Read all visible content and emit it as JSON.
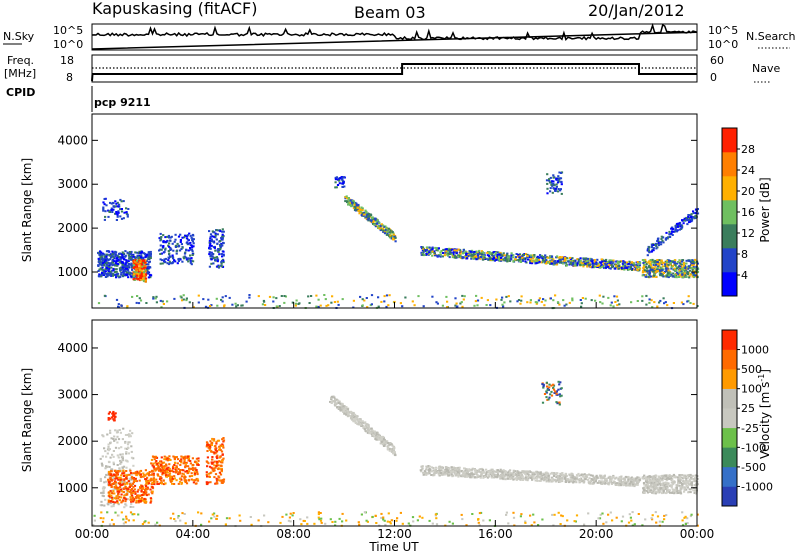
{
  "header": {
    "station": "Kapuskasing (fitACF)",
    "beam": "Beam 03",
    "date": "20/Jan/2012"
  },
  "side_labels": {
    "nsky": "N.Sky",
    "freq": "Freq.",
    "freq_unit": "[MHz]",
    "cpid": "CPID",
    "nsearch": "N.Search",
    "nave": "Nave"
  },
  "nsky_ticks": {
    "top": "10^5",
    "bottom": "10^0"
  },
  "nsearch_ticks": {
    "top": "10^5",
    "bottom": "10^0"
  },
  "freq_ticks": {
    "top": "18",
    "bottom": "8"
  },
  "nave_ticks": {
    "top": "60",
    "bottom": "0"
  },
  "cpid_text": "pcp 9211",
  "chart_data": [
    {
      "type": "heatmap",
      "name": "power",
      "ylabel": "Slant Range [km]",
      "ylim": [
        180,
        4600
      ],
      "yticks": [
        1000,
        2000,
        3000,
        4000
      ],
      "colorbar": {
        "label": "Power [dB]",
        "ticks": [
          "28",
          "24",
          "20",
          "16",
          "12",
          "8",
          "4"
        ],
        "colors": [
          "#0000ff",
          "#2244c8",
          "#3a7d5c",
          "#6fbf60",
          "#ffb000",
          "#ff7f00",
          "#ff2000"
        ]
      }
    },
    {
      "type": "heatmap",
      "name": "velocity",
      "ylabel": "Slant Range [km]",
      "ylim": [
        180,
        4600
      ],
      "yticks": [
        1000,
        2000,
        3000,
        4000
      ],
      "xlabel": "Time UT",
      "xticks": [
        "00:00",
        "04:00",
        "08:00",
        "12:00",
        "16:00",
        "20:00",
        "00:00"
      ],
      "colorbar": {
        "label": "Velocity [m s^-1]",
        "ticks": [
          "1000",
          "500",
          "100",
          "25",
          "-25",
          "-100",
          "-500",
          "-1000"
        ],
        "colors": [
          "#2a3fb5",
          "#3570c8",
          "#3b8a5a",
          "#6cc04a",
          "#c8c8c0",
          "#c0c0b8",
          "#ff9a00",
          "#ff6a00",
          "#ff2a00"
        ]
      }
    }
  ]
}
